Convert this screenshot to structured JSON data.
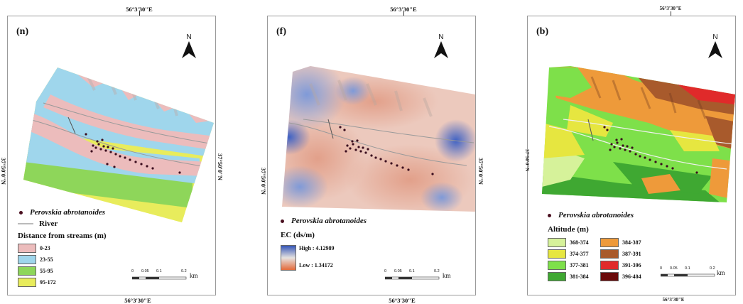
{
  "panels": [
    {
      "id": "n",
      "label": "(n)",
      "north": "N",
      "top_coord": "56°3'30''E",
      "bottom_coord": "56°3'30\"E",
      "left_coord": "37°50'0\"N",
      "right_coord": "37°50'0''N",
      "species": "Perovskia abrotanoides",
      "river": "River",
      "legend_title": "Distance from streams (m)",
      "classes": [
        {
          "label": "0-23",
          "color": "#ecbcbc"
        },
        {
          "label": "23-55",
          "color": "#9fd6ec"
        },
        {
          "label": "55-95",
          "color": "#8ed65a"
        },
        {
          "label": "95-172",
          "color": "#e8ec5c"
        }
      ],
      "scale": [
        "0",
        "0.05",
        "0.1",
        "0.2"
      ],
      "scale_unit": "km"
    },
    {
      "id": "f",
      "label": "(f)",
      "north": "N",
      "top_coord": "56°3'30\"E",
      "bottom_coord": "56°3'30\"E",
      "left_coord": "37°50'0\"N",
      "right_coord": "37°50'0\"N",
      "species": "Perovskia abrotanoides",
      "legend_title": "EC (ds/m)",
      "ramp_high": "High : 4.12989",
      "ramp_low": "Low : 1.34172",
      "ramp_colors": [
        "#3556b8",
        "#e6e2e0",
        "#e46a3a"
      ],
      "scale": [
        "0",
        "0.05",
        "0.1",
        "0.2"
      ],
      "scale_unit": "km"
    },
    {
      "id": "b",
      "label": "(b)",
      "north": "N",
      "top_coord": "56°3'30\"E",
      "bottom_coord": "56°3'30\"E",
      "left_coord": "37°50'0\"N",
      "species": "Perovskia abrotanoides",
      "legend_title": "Altitude (m)",
      "classes_left": [
        {
          "label": "368-374",
          "color": "#d6f29a"
        },
        {
          "label": "374-377",
          "color": "#e6e640"
        },
        {
          "label": "377-381",
          "color": "#7ee04a"
        },
        {
          "label": "381-384",
          "color": "#3fa832"
        }
      ],
      "classes_right": [
        {
          "label": "384-387",
          "color": "#ee9a3a"
        },
        {
          "label": "387-391",
          "color": "#a85a2c"
        },
        {
          "label": "391-396",
          "color": "#e02a2a"
        },
        {
          "label": "396-404",
          "color": "#6a0a0a"
        }
      ],
      "scale": [
        "0",
        "0.05",
        "0.1",
        "0.2"
      ],
      "scale_unit": "km"
    }
  ]
}
